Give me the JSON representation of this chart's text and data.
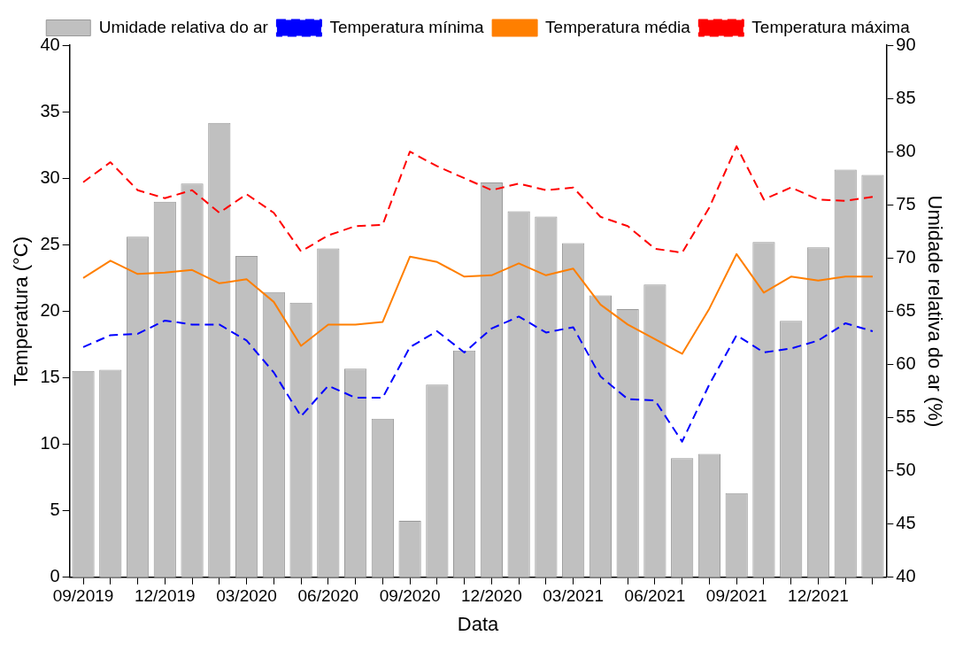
{
  "chart_data": {
    "type": "bar",
    "xlabel": "Data",
    "ylabel": "Temperatura (°C)",
    "y2label": "Umidade relativa do ar (%)",
    "categories": [
      "09/2019",
      null,
      null,
      "12/2019",
      null,
      null,
      "03/2020",
      null,
      null,
      "06/2020",
      null,
      null,
      "09/2020",
      null,
      null,
      "12/2020",
      null,
      null,
      "03/2021",
      null,
      null,
      "06/2021",
      null,
      null,
      "09/2021",
      null,
      null,
      "12/2021",
      null,
      null
    ],
    "series": [
      {
        "name": "Umidade relativa do ar",
        "axis": "y2",
        "color": "#c0c0c0",
        "values": [
          59.4,
          59.5,
          72.0,
          75.3,
          77.0,
          82.7,
          70.2,
          66.8,
          65.8,
          70.9,
          59.6,
          54.9,
          45.3,
          58.1,
          61.3,
          77.1,
          74.4,
          73.9,
          71.4,
          66.5,
          65.2,
          67.5,
          51.2,
          51.6,
          47.9,
          71.5,
          64.1,
          71.0,
          78.3,
          77.8
        ]
      },
      {
        "name": "Temperatura mínima",
        "type": "line",
        "axis": "y",
        "color": "#0000ff",
        "line_style": "dashed",
        "values": [
          17.3,
          18.2,
          18.3,
          19.3,
          19.0,
          19.0,
          17.8,
          15.4,
          12.1,
          14.4,
          13.5,
          13.5,
          17.3,
          18.5,
          16.9,
          18.7,
          19.6,
          18.4,
          18.8,
          15.1,
          13.4,
          13.3,
          10.2,
          14.5,
          18.2,
          16.9,
          17.2,
          17.8,
          19.1,
          18.5
        ]
      },
      {
        "name": "Temperatura média",
        "type": "line",
        "axis": "y",
        "color": "#ff7f00",
        "line_style": "solid",
        "values": [
          22.5,
          23.8,
          22.8,
          22.9,
          23.1,
          22.1,
          22.4,
          20.7,
          17.4,
          19.0,
          19.0,
          19.2,
          24.1,
          23.7,
          22.6,
          22.7,
          23.6,
          22.7,
          23.2,
          20.5,
          19.0,
          17.9,
          16.8,
          20.2,
          24.3,
          21.4,
          22.6,
          22.3,
          22.6,
          22.6
        ]
      },
      {
        "name": "Temperatura máxima",
        "type": "line",
        "axis": "y",
        "color": "#ff0000",
        "line_style": "dashed",
        "values": [
          29.7,
          31.2,
          29.1,
          28.5,
          29.1,
          27.4,
          28.8,
          27.4,
          24.5,
          25.7,
          26.4,
          26.5,
          32.0,
          30.9,
          30.0,
          29.1,
          29.6,
          29.1,
          29.3,
          27.1,
          26.4,
          24.7,
          24.4,
          27.8,
          32.4,
          28.4,
          29.3,
          28.4,
          28.3,
          28.6
        ]
      }
    ],
    "ylim": [
      0,
      40
    ],
    "yticks": [
      0,
      5,
      10,
      15,
      20,
      25,
      30,
      35,
      40
    ],
    "y2lim": [
      40,
      90
    ],
    "y2ticks": [
      40,
      45,
      50,
      55,
      60,
      65,
      70,
      75,
      80,
      85,
      90
    ],
    "grid": false,
    "legend": "top",
    "marker": "none"
  }
}
